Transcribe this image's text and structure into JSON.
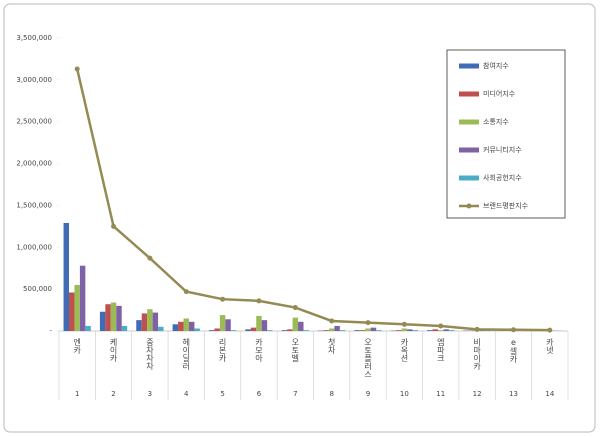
{
  "chart_data": {
    "type": "bar",
    "categories": [
      "엔카",
      "케이카",
      "중차차차",
      "헤이딜러",
      "리본카",
      "카모아",
      "오토벨",
      "첫차",
      "오토플러스",
      "카옥션",
      "엠파크",
      "비마이카",
      "e셀카",
      "카넷"
    ],
    "category_numbers": [
      1,
      2,
      3,
      4,
      5,
      6,
      7,
      8,
      9,
      10,
      11,
      12,
      13,
      14
    ],
    "series": [
      {
        "name": "참여지수",
        "color": "#3f6cb5",
        "values": [
          1290000,
          230000,
          130000,
          80000,
          10000,
          20000,
          10000,
          5000,
          10000,
          5000,
          10000,
          5000,
          3000,
          2000
        ]
      },
      {
        "name": "미디어지수",
        "color": "#c0504d",
        "values": [
          460000,
          320000,
          210000,
          110000,
          30000,
          40000,
          20000,
          10000,
          10000,
          10000,
          20000,
          5000,
          5000,
          3000
        ]
      },
      {
        "name": "소통지수",
        "color": "#9bbb59",
        "values": [
          550000,
          340000,
          260000,
          150000,
          190000,
          180000,
          160000,
          30000,
          30000,
          30000,
          10000,
          5000,
          5000,
          2000
        ]
      },
      {
        "name": "커뮤니티지수",
        "color": "#7f62a6",
        "values": [
          780000,
          300000,
          220000,
          110000,
          140000,
          130000,
          110000,
          60000,
          40000,
          20000,
          20000,
          5000,
          5000,
          3000
        ]
      },
      {
        "name": "사회공헌지수",
        "color": "#4bacc6",
        "values": [
          60000,
          60000,
          50000,
          30000,
          10000,
          10000,
          10000,
          10000,
          10000,
          10000,
          10000,
          5000,
          5000,
          2000
        ]
      },
      {
        "name": "브랜드평판지수",
        "color": "#948a54",
        "type": "line",
        "values": [
          3130000,
          1250000,
          870000,
          470000,
          380000,
          360000,
          280000,
          120000,
          100000,
          80000,
          60000,
          20000,
          15000,
          10000
        ]
      }
    ],
    "ylim": [
      0,
      3500000
    ],
    "yticks": [
      {
        "value": 0,
        "label": "-"
      },
      {
        "value": 500000,
        "label": "500,000"
      },
      {
        "value": 1000000,
        "label": "1,000,000"
      },
      {
        "value": 1500000,
        "label": "1,500,000"
      },
      {
        "value": 2000000,
        "label": "2,000,000"
      },
      {
        "value": 2500000,
        "label": "2,500,000"
      },
      {
        "value": 3000000,
        "label": "3,000,000"
      },
      {
        "value": 3500000,
        "label": "3,500,000"
      }
    ],
    "grid": false,
    "legend": "upper right"
  }
}
